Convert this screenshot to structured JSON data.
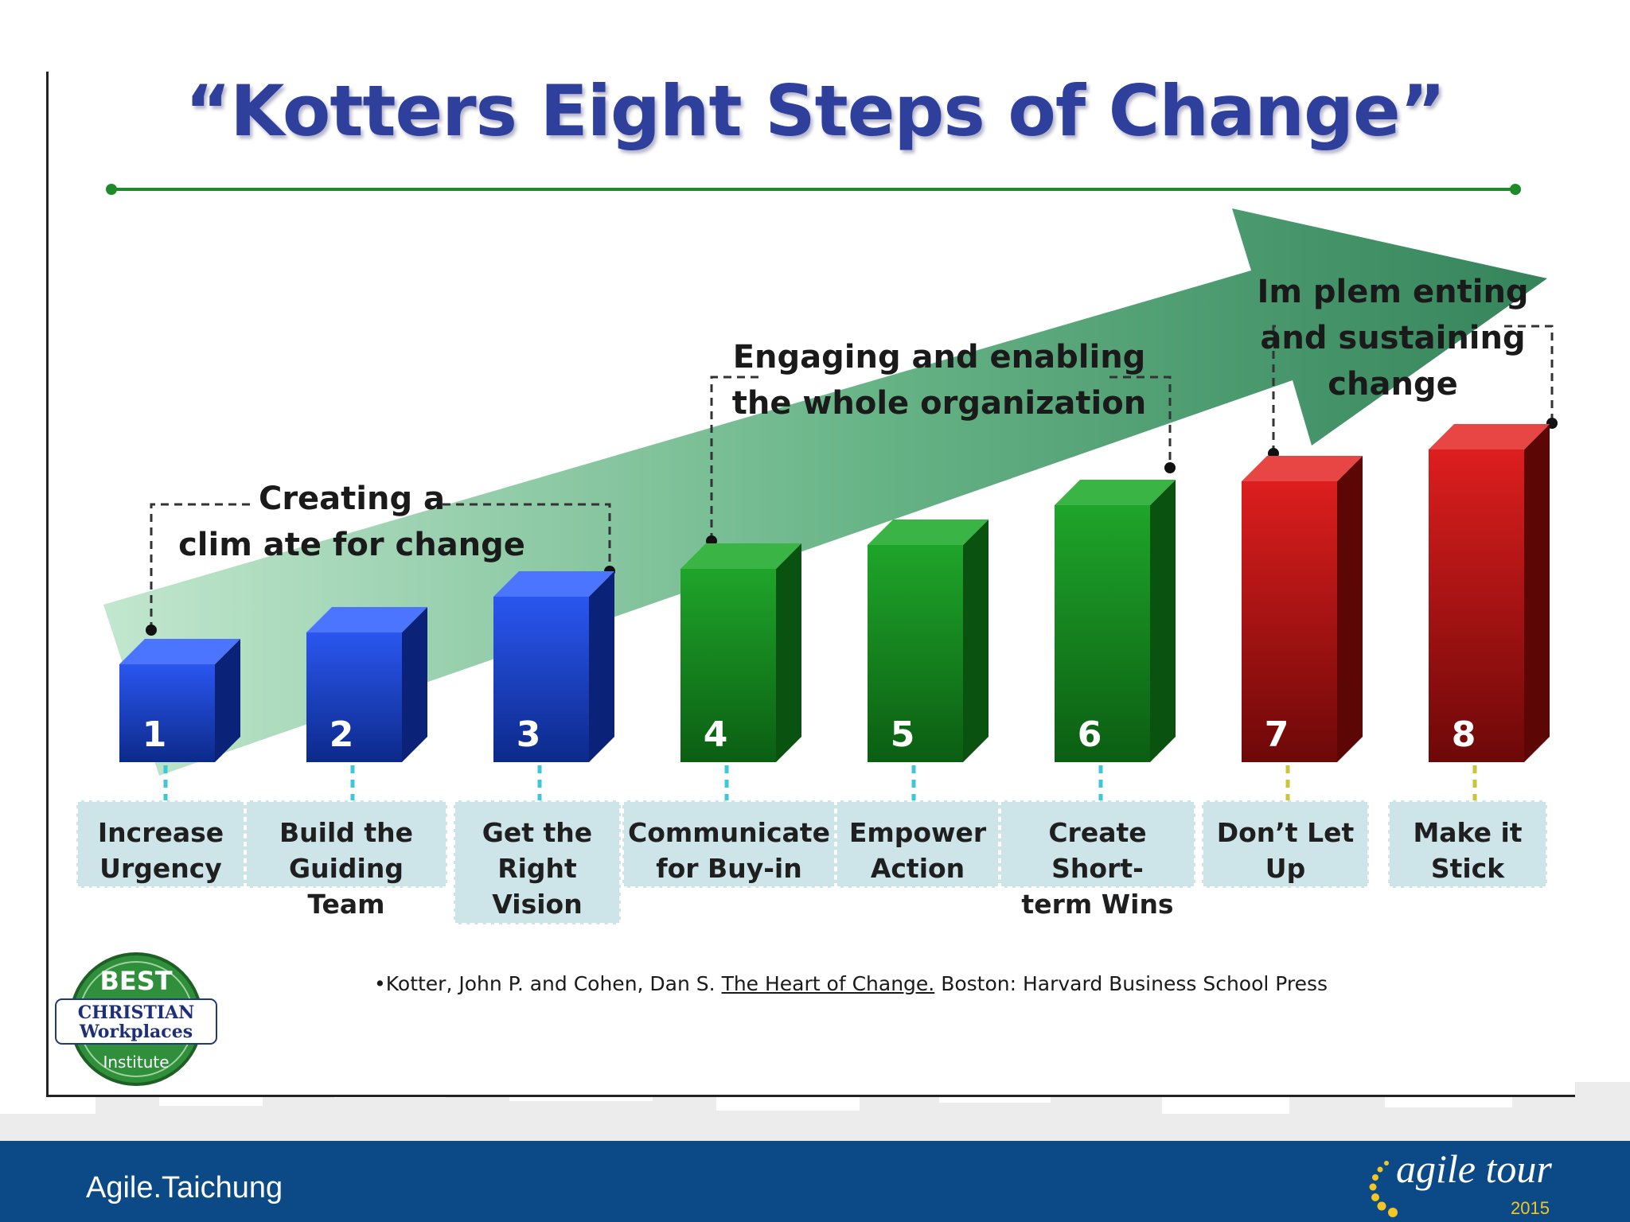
{
  "title": "“Kotters Eight Steps of Change”",
  "groups": [
    {
      "label_lines": [
        "Creating a",
        "clim ate for change"
      ]
    },
    {
      "label_lines": [
        "Engaging and enabling",
        "the whole organization"
      ]
    },
    {
      "label_lines": [
        "Im plem enting",
        "and sustaining",
        "change"
      ]
    }
  ],
  "steps": [
    {
      "number": "1",
      "label": "Increase\nUrgency"
    },
    {
      "number": "2",
      "label": "Build the\nGuiding Team"
    },
    {
      "number": "3",
      "label": "Get the\nRight\nVision"
    },
    {
      "number": "4",
      "label": "Communicate\nfor Buy-in"
    },
    {
      "number": "5",
      "label": "Empower\nAction"
    },
    {
      "number": "6",
      "label": "Create Short-\nterm Wins"
    },
    {
      "number": "7",
      "label": "Don’t Let\nUp"
    },
    {
      "number": "8",
      "label": "Make it\nStick"
    }
  ],
  "colors": {
    "blue": "#1d3fd6",
    "green": "#1f9a27",
    "red": "#c81616",
    "title": "#2e3f9c",
    "footer": "#0b4a86"
  },
  "citation": {
    "marker": "•",
    "prefix": "Kotter, John P. and Cohen, Dan S. ",
    "book": "The Heart of Change.",
    "suffix": "  Boston:  Harvard Business School Press"
  },
  "badge": {
    "top": "BEST",
    "line1": "CHRISTIAN",
    "line2": "Workplaces",
    "bottom": "Institute"
  },
  "footer": {
    "left": "Agile.Taichung",
    "logo_text": "agile tour",
    "logo_year": "2015"
  }
}
